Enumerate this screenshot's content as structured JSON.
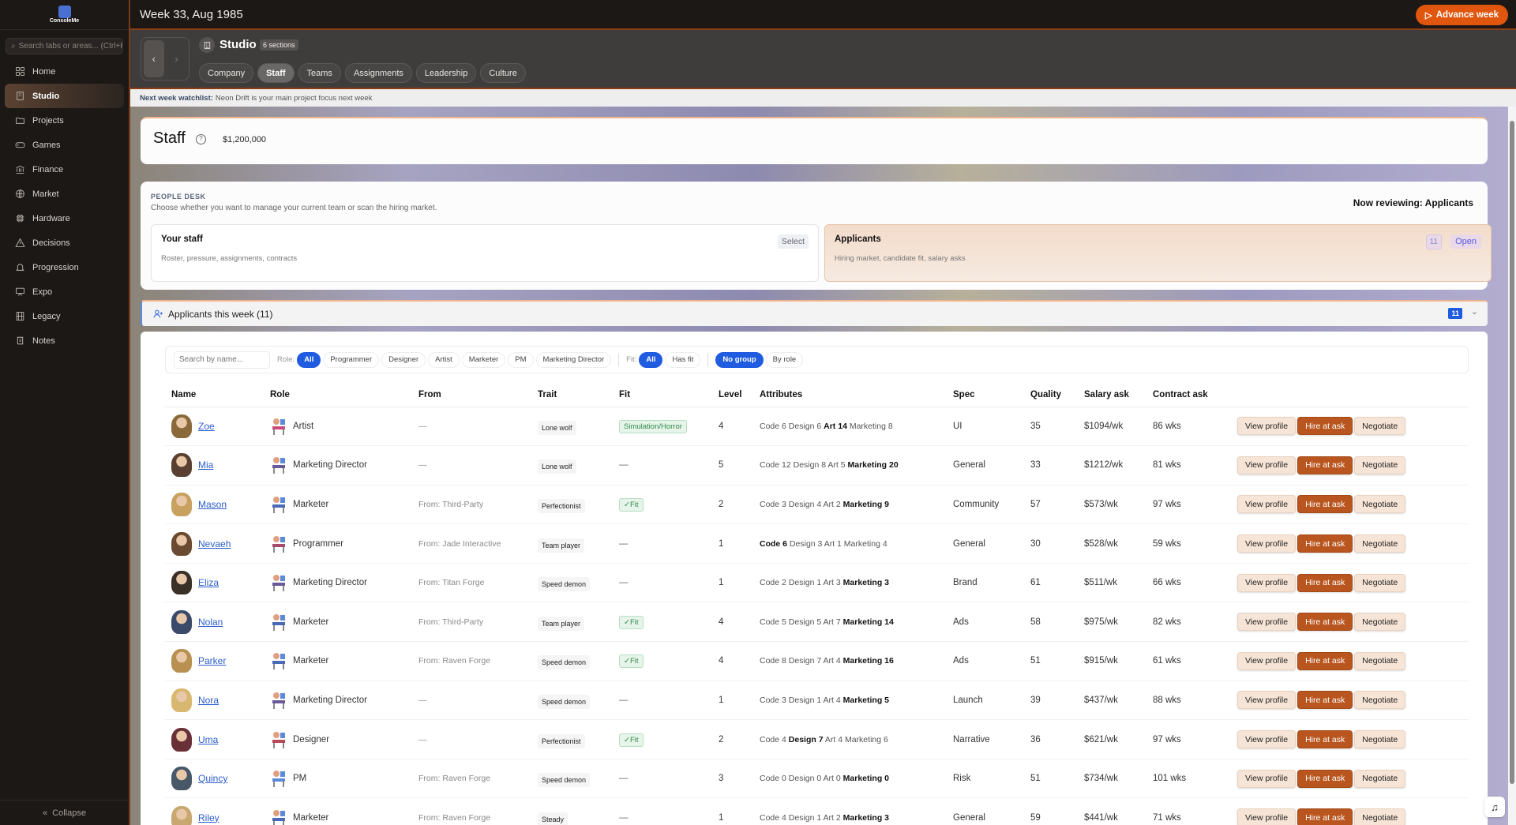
{
  "app": {
    "logo_text": "ConsoleMe",
    "title": "Week 33, Aug 1985",
    "advance_label": "Advance week"
  },
  "sidebar": {
    "search_placeholder": "Search tabs or areas... (Ctrl+K)",
    "collapse_label": "Collapse",
    "items": [
      {
        "label": "Home",
        "icon": "grid"
      },
      {
        "label": "Studio",
        "icon": "building",
        "active": true
      },
      {
        "label": "Projects",
        "icon": "folder"
      },
      {
        "label": "Games",
        "icon": "gamepad"
      },
      {
        "label": "Finance",
        "icon": "bank"
      },
      {
        "label": "Market",
        "icon": "globe"
      },
      {
        "label": "Hardware",
        "icon": "chip"
      },
      {
        "label": "Decisions",
        "icon": "warning"
      },
      {
        "label": "Progression",
        "icon": "bell"
      },
      {
        "label": "Expo",
        "icon": "presentation"
      },
      {
        "label": "Legacy",
        "icon": "film"
      },
      {
        "label": "Notes",
        "icon": "scroll"
      }
    ]
  },
  "studio": {
    "title": "Studio",
    "sections_badge": "6 sections",
    "tabs": [
      "Company",
      "Staff",
      "Teams",
      "Assignments",
      "Leadership",
      "Culture"
    ],
    "active_tab": "Staff"
  },
  "watchlist": {
    "label": "Next week watchlist:",
    "text": "Neon Drift is your main project focus next week"
  },
  "staff": {
    "title": "Staff",
    "money": "$1,200,000"
  },
  "desk": {
    "label": "PEOPLE DESK",
    "subtitle": "Choose whether you want to manage your current team or scan the hiring market.",
    "now_reviewing": "Now reviewing: Applicants",
    "your_staff": {
      "title": "Your staff",
      "desc": "Roster, pressure, assignments, contracts",
      "button": "Select"
    },
    "applicants": {
      "title": "Applicants",
      "desc": "Hiring market, candidate fit, salary asks",
      "count": "11",
      "button": "Open"
    }
  },
  "applicants_section": {
    "title": "Applicants this week (11)",
    "count": "11"
  },
  "filters": {
    "search_placeholder": "Search by name...",
    "role_label": "Role:",
    "roles": [
      "All",
      "Programmer",
      "Designer",
      "Artist",
      "Marketer",
      "PM",
      "Marketing Director"
    ],
    "fit_label": "Fit:",
    "fits": [
      "All",
      "Has fit"
    ],
    "groups": [
      "No group",
      "By role"
    ],
    "selected_role": "All",
    "selected_fit": "All",
    "selected_group": "No group"
  },
  "table": {
    "columns": [
      "Name",
      "Role",
      "From",
      "Trait",
      "Fit",
      "Level",
      "Attributes",
      "Spec",
      "Quality",
      "Salary ask",
      "Contract ask"
    ],
    "actions": {
      "view": "View profile",
      "hire": "Hire at ask",
      "negotiate": "Negotiate"
    },
    "rows": [
      {
        "name": "Zoe",
        "role": "Artist",
        "from": "—",
        "trait": "Lone wolf",
        "fit": "Simulation/Horror",
        "level": "4",
        "attrs": {
          "Code": 6,
          "Design": 6,
          "Art": 14,
          "Marketing": 8
        },
        "best": "Art",
        "spec": "UI",
        "quality": "35",
        "salary": "$1094/wk",
        "contract": "86 wks"
      },
      {
        "name": "Mia",
        "role": "Marketing Director",
        "from": "—",
        "trait": "Lone wolf",
        "fit": "",
        "level": "5",
        "attrs": {
          "Code": 12,
          "Design": 8,
          "Art": 5,
          "Marketing": 20
        },
        "best": "Marketing",
        "spec": "General",
        "quality": "33",
        "salary": "$1212/wk",
        "contract": "81 wks"
      },
      {
        "name": "Mason",
        "role": "Marketer",
        "from": "From: Third-Party",
        "trait": "Perfectionist",
        "fit": "✓Fit",
        "level": "2",
        "attrs": {
          "Code": 3,
          "Design": 4,
          "Art": 2,
          "Marketing": 9
        },
        "best": "Marketing",
        "spec": "Community",
        "quality": "57",
        "salary": "$573/wk",
        "contract": "97 wks"
      },
      {
        "name": "Nevaeh",
        "role": "Programmer",
        "from": "From: Jade Interactive",
        "trait": "Team player",
        "fit": "",
        "level": "1",
        "attrs": {
          "Code": 6,
          "Design": 3,
          "Art": 1,
          "Marketing": 4
        },
        "best": "Code",
        "spec": "General",
        "quality": "30",
        "salary": "$528/wk",
        "contract": "59 wks"
      },
      {
        "name": "Eliza",
        "role": "Marketing Director",
        "from": "From: Titan Forge",
        "trait": "Speed demon",
        "fit": "",
        "level": "1",
        "attrs": {
          "Code": 2,
          "Design": 1,
          "Art": 3,
          "Marketing": 3
        },
        "best": "Marketing",
        "spec": "Brand",
        "quality": "61",
        "salary": "$511/wk",
        "contract": "66 wks"
      },
      {
        "name": "Nolan",
        "role": "Marketer",
        "from": "From: Third-Party",
        "trait": "Team player",
        "fit": "✓Fit",
        "level": "4",
        "attrs": {
          "Code": 5,
          "Design": 5,
          "Art": 7,
          "Marketing": 14
        },
        "best": "Marketing",
        "spec": "Ads",
        "quality": "58",
        "salary": "$975/wk",
        "contract": "82 wks"
      },
      {
        "name": "Parker",
        "role": "Marketer",
        "from": "From: Raven Forge",
        "trait": "Speed demon",
        "fit": "✓Fit",
        "level": "4",
        "attrs": {
          "Code": 8,
          "Design": 7,
          "Art": 4,
          "Marketing": 16
        },
        "best": "Marketing",
        "spec": "Ads",
        "quality": "51",
        "salary": "$915/wk",
        "contract": "61 wks"
      },
      {
        "name": "Nora",
        "role": "Marketing Director",
        "from": "—",
        "trait": "Speed demon",
        "fit": "",
        "level": "1",
        "attrs": {
          "Code": 3,
          "Design": 1,
          "Art": 4,
          "Marketing": 5
        },
        "best": "Marketing",
        "spec": "Launch",
        "quality": "39",
        "salary": "$437/wk",
        "contract": "88 wks"
      },
      {
        "name": "Uma",
        "role": "Designer",
        "from": "—",
        "trait": "Perfectionist",
        "fit": "✓Fit",
        "level": "2",
        "attrs": {
          "Code": 4,
          "Design": 7,
          "Art": 4,
          "Marketing": 6
        },
        "best": "Design",
        "spec": "Narrative",
        "quality": "36",
        "salary": "$621/wk",
        "contract": "97 wks"
      },
      {
        "name": "Quincy",
        "role": "PM",
        "from": "From: Raven Forge",
        "trait": "Speed demon",
        "fit": "",
        "level": "3",
        "attrs": {
          "Code": 0,
          "Design": 0,
          "Art": 0,
          "Marketing": 0
        },
        "best": "Marketing",
        "spec": "Risk",
        "quality": "51",
        "salary": "$734/wk",
        "contract": "101 wks"
      },
      {
        "name": "Riley",
        "role": "Marketer",
        "from": "From: Raven Forge",
        "trait": "Steady",
        "fit": "",
        "level": "1",
        "attrs": {
          "Code": 4,
          "Design": 1,
          "Art": 2,
          "Marketing": 3
        },
        "best": "Marketing",
        "spec": "General",
        "quality": "59",
        "salary": "$441/wk",
        "contract": "71 wks"
      }
    ]
  },
  "colors": {
    "accent": "#e0560f",
    "hire": "#b9561f",
    "primary": "#1f5ce0",
    "fit": "#2f8a4a"
  }
}
